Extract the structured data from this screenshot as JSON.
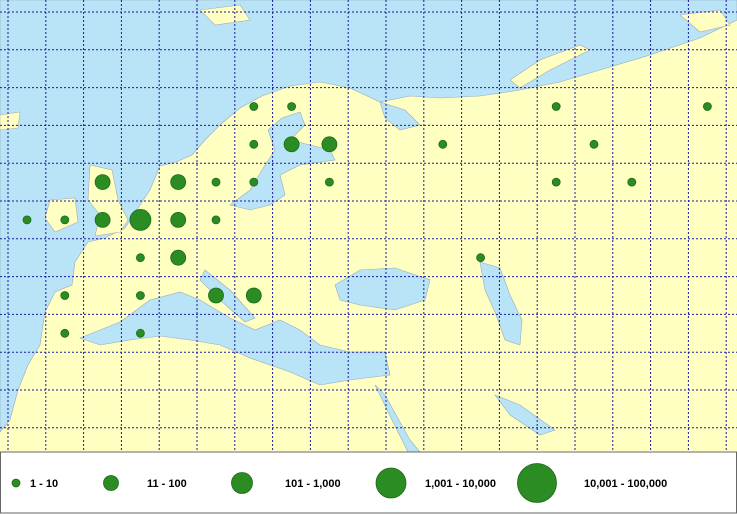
{
  "points": [
    {
      "lon": 20,
      "lat": 67.5,
      "class": 0
    },
    {
      "lon": 25,
      "lat": 67.5,
      "class": 0
    },
    {
      "lon": 60,
      "lat": 67.5,
      "class": 0
    },
    {
      "lon": 80,
      "lat": 67.5,
      "class": 0
    },
    {
      "lon": 20,
      "lat": 62.5,
      "class": 0
    },
    {
      "lon": 25,
      "lat": 62.5,
      "class": 1
    },
    {
      "lon": 30,
      "lat": 62.5,
      "class": 1
    },
    {
      "lon": 45,
      "lat": 62.5,
      "class": 0
    },
    {
      "lon": 65,
      "lat": 62.5,
      "class": 0
    },
    {
      "lon": 0,
      "lat": 57.5,
      "class": 1
    },
    {
      "lon": 10,
      "lat": 57.5,
      "class": 1
    },
    {
      "lon": 15,
      "lat": 57.5,
      "class": 0
    },
    {
      "lon": 20,
      "lat": 57.5,
      "class": 0
    },
    {
      "lon": 30,
      "lat": 57.5,
      "class": 0
    },
    {
      "lon": 60,
      "lat": 57.5,
      "class": 0
    },
    {
      "lon": 70,
      "lat": 57.5,
      "class": 0
    },
    {
      "lon": -10,
      "lat": 52.5,
      "class": 0
    },
    {
      "lon": -5,
      "lat": 52.5,
      "class": 0
    },
    {
      "lon": 0,
      "lat": 52.5,
      "class": 1
    },
    {
      "lon": 5,
      "lat": 52.5,
      "class": 2
    },
    {
      "lon": 10,
      "lat": 52.5,
      "class": 1
    },
    {
      "lon": 15,
      "lat": 52.5,
      "class": 0
    },
    {
      "lon": 5,
      "lat": 47.5,
      "class": 0
    },
    {
      "lon": 10,
      "lat": 47.5,
      "class": 1
    },
    {
      "lon": 50,
      "lat": 47.5,
      "class": 0
    },
    {
      "lon": -5,
      "lat": 42.5,
      "class": 0
    },
    {
      "lon": 5,
      "lat": 42.5,
      "class": 0
    },
    {
      "lon": 15,
      "lat": 42.5,
      "class": 1
    },
    {
      "lon": 20,
      "lat": 42.5,
      "class": 1
    },
    {
      "lon": -5,
      "lat": 37.5,
      "class": 0
    },
    {
      "lon": 5,
      "lat": 37.5,
      "class": 0
    }
  ],
  "legend": [
    {
      "label": "1 - 10"
    },
    {
      "label": "11 - 100"
    },
    {
      "label": "101 - 1,000"
    },
    {
      "label": "1,001 - 10,000"
    },
    {
      "label": "10,001 - 100,000"
    }
  ]
}
